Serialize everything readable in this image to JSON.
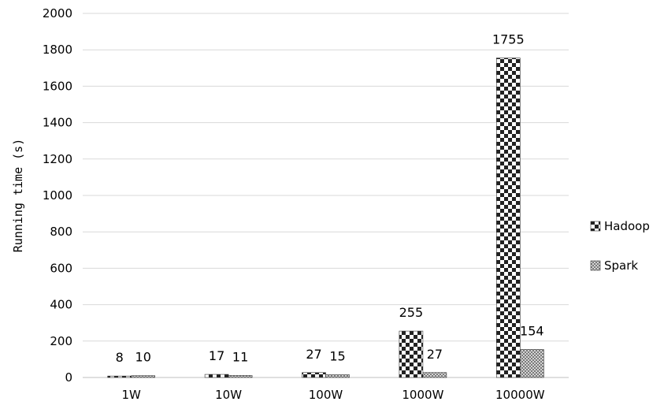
{
  "chart_data": {
    "type": "bar",
    "categories": [
      "1W",
      "10W",
      "100W",
      "1000W",
      "10000W"
    ],
    "series": [
      {
        "name": "Hadoop",
        "values": [
          8,
          17,
          27,
          255,
          1755
        ],
        "pattern": "checker"
      },
      {
        "name": "Spark",
        "values": [
          10,
          11,
          15,
          27,
          154
        ],
        "pattern": "fine"
      }
    ],
    "ylabel": "Running time (s)",
    "xlabel": "",
    "ylim": [
      0,
      2000
    ],
    "yticks": [
      0,
      200,
      400,
      600,
      800,
      1000,
      1200,
      1400,
      1600,
      1800,
      2000
    ],
    "grid": true,
    "legend_position": "right"
  }
}
